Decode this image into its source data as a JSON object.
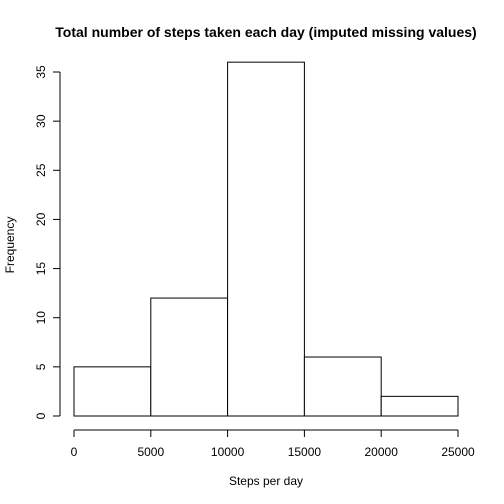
{
  "chart_data": {
    "type": "bar",
    "title": "Total number of steps taken each day (imputed missing values)",
    "xlabel": "Steps per day",
    "ylabel": "Frequency",
    "bins": [
      {
        "start": 0,
        "end": 5000,
        "value": 5
      },
      {
        "start": 5000,
        "end": 10000,
        "value": 12
      },
      {
        "start": 10000,
        "end": 15000,
        "value": 36
      },
      {
        "start": 15000,
        "end": 20000,
        "value": 6
      },
      {
        "start": 20000,
        "end": 25000,
        "value": 2
      }
    ],
    "xticks": [
      "0",
      "5000",
      "10000",
      "15000",
      "20000",
      "25000"
    ],
    "yticks": [
      "0",
      "5",
      "10",
      "15",
      "20",
      "25",
      "30",
      "35"
    ],
    "xlim": [
      0,
      25000
    ],
    "ylim": [
      0,
      35
    ],
    "grid": false,
    "legend": "none",
    "bar_fill": "#ffffff",
    "bar_stroke": "#000000"
  }
}
